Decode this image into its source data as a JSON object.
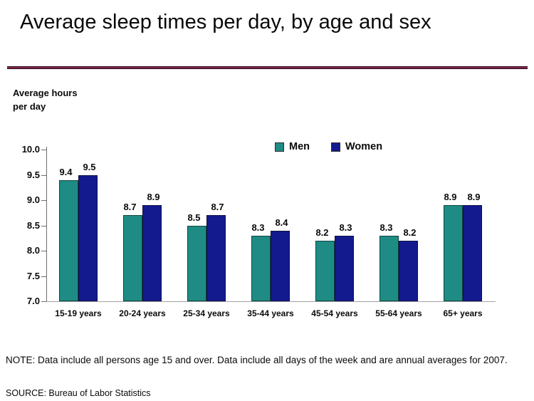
{
  "title": "Average sleep times per day, by age and sex",
  "y_axis_title": "Average hours\nper day",
  "note": "NOTE: Data include all persons age 15 and over. Data include all days of the week and are annual averages for 2007.",
  "source": "SOURCE: Bureau of Labor Statistics",
  "colors": {
    "men_bar": "#1e8c84",
    "women_bar": "#131a8e",
    "title_rule": "#82224a",
    "axis_line": "#6e6e6e",
    "baseline": "#a3a3a3"
  },
  "chart_data": {
    "type": "bar",
    "title": "Average sleep times per day, by age and sex",
    "categories": [
      "15-19 years",
      "20-24 years",
      "25-34 years",
      "35-44 years",
      "45-54 years",
      "55-64 years",
      "65+ years"
    ],
    "series": [
      {
        "name": "Men",
        "color": "#1e8c84",
        "values": [
          9.4,
          8.7,
          8.5,
          8.3,
          8.2,
          8.3,
          8.9
        ]
      },
      {
        "name": "Women",
        "color": "#131a8e",
        "values": [
          9.5,
          8.9,
          8.7,
          8.4,
          8.3,
          8.2,
          8.9
        ]
      }
    ],
    "xlabel": "",
    "ylabel": "Average hours per day",
    "ylim": [
      7.0,
      10.0
    ],
    "ytick_step": 0.5,
    "yticks": [
      7.0,
      7.5,
      8.0,
      8.5,
      9.0,
      9.5,
      10.0
    ],
    "grid": false,
    "data_labels": true,
    "legend_position": "top-center"
  }
}
